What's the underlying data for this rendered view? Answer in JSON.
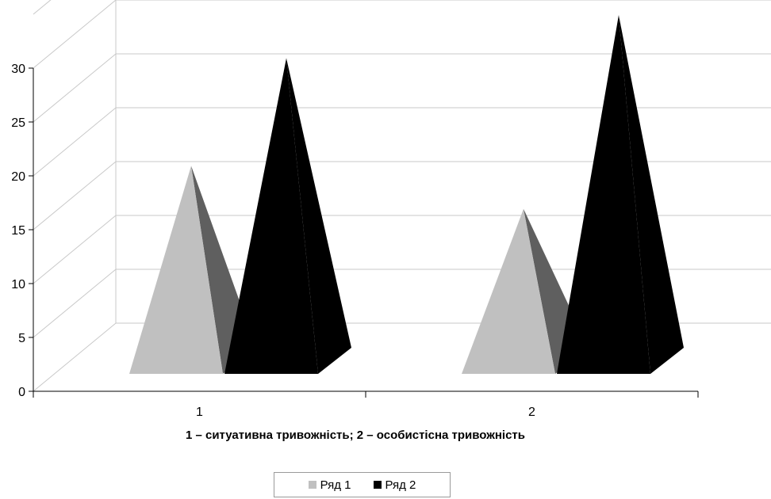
{
  "chart_data": {
    "type": "bar",
    "shape": "pyramid-3d",
    "categories": [
      "1",
      "2"
    ],
    "series": [
      {
        "name": "Ряд 1",
        "color": "#c0c0c0",
        "values": [
          16.5,
          12.5
        ]
      },
      {
        "name": "Ряд 2",
        "color": "#000000",
        "values": [
          26.5,
          30.5
        ]
      }
    ],
    "ylim": [
      0,
      30
    ],
    "y_ticks": [
      0,
      5,
      10,
      15,
      20,
      25,
      30
    ],
    "grid": true,
    "legend_position": "bottom",
    "caption": "1 – ситуативна тривожність; 2 – особистісна тривожність"
  }
}
